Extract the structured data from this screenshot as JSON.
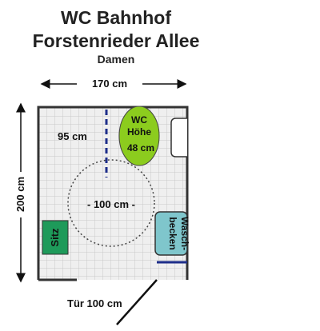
{
  "title_line1": "WC Bahnhof",
  "title_line2": "Forstenrieder Allee",
  "subtitle": "Damen",
  "width_label": "170 cm",
  "height_label": "200 cm",
  "distance_label": "95 cm",
  "wc_label": {
    "line1": "WC",
    "line2": "Höhe",
    "line3": "48 cm"
  },
  "turning_circle_label": "- 100 cm -",
  "seat_label": "Sitz",
  "sink_label": {
    "line1": "Wasch-",
    "line2": "becken"
  },
  "door_label": "Tür 100 cm",
  "colors": {
    "wc": "#8ccc1e",
    "seat": "#1e9a5a",
    "sink": "#7fc6cc",
    "grid": "#c8c8c8",
    "floor": "#efefef",
    "wall": "#333333",
    "marker": "#1e2e8a"
  }
}
